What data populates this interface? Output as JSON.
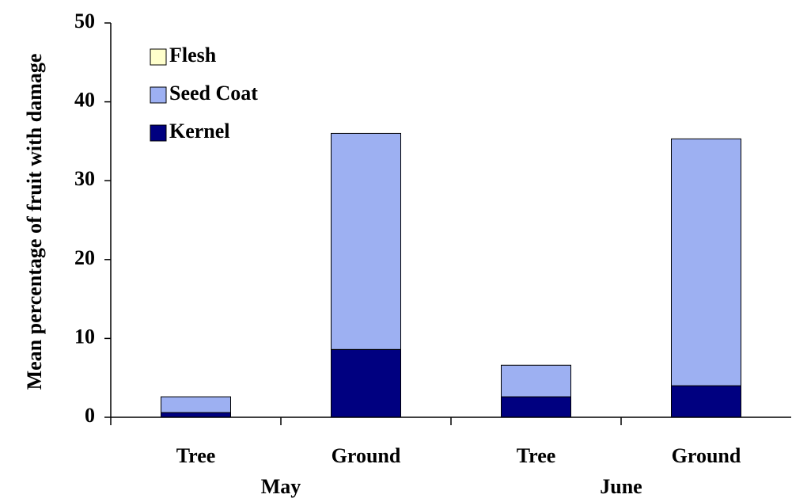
{
  "chart_data": {
    "type": "stacked_bar",
    "y_label": "Mean percentage of fruit with damage",
    "categories": [
      "Tree",
      "Ground",
      "Tree",
      "Ground"
    ],
    "groups": [
      "May",
      "June"
    ],
    "series": [
      {
        "name": "Kernel",
        "color": "#000080",
        "values": [
          0.6,
          8.6,
          2.6,
          4.0
        ]
      },
      {
        "name": "Seed Coat",
        "color": "#9db0f2",
        "values": [
          2.0,
          27.4,
          4.0,
          31.3
        ]
      },
      {
        "name": "Flesh",
        "color": "#ffffcc",
        "values": [
          0,
          0,
          0,
          0
        ]
      }
    ],
    "ylim": [
      0,
      50
    ],
    "yticks": [
      0,
      10,
      20,
      30,
      40,
      50
    ],
    "legend": "upper left"
  }
}
